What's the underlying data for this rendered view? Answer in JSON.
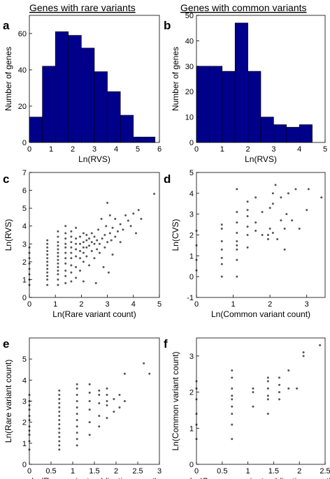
{
  "headers": {
    "rare": "Genes with rare variants",
    "common": "Genes with common variants"
  },
  "chart_data": [
    {
      "panel": "a",
      "type": "bar",
      "xlabel": "Ln(RVS)",
      "ylabel": "Number of genes",
      "xlim": [
        0,
        6
      ],
      "ylim": [
        0,
        70
      ],
      "xticks": [
        0,
        1,
        2,
        3,
        4,
        5,
        6
      ],
      "yticks": [
        0,
        20,
        40,
        60
      ],
      "bin_edges": [
        0,
        0.6,
        1.2,
        1.8,
        2.4,
        3.0,
        3.6,
        4.2,
        4.8,
        5.8
      ],
      "values": [
        14,
        42,
        61,
        59,
        52,
        39,
        28,
        15,
        3
      ],
      "color": "#00008b"
    },
    {
      "panel": "b",
      "type": "bar",
      "xlabel": "Ln(RVS)",
      "ylabel": "Number of genes",
      "xlim": [
        0,
        5
      ],
      "ylim": [
        0,
        50
      ],
      "xticks": [
        0,
        1,
        2,
        3,
        4,
        5
      ],
      "yticks": [
        0,
        10,
        20,
        30,
        40,
        50
      ],
      "bin_edges": [
        0,
        0.5,
        1.0,
        1.5,
        2.0,
        2.5,
        3.0,
        3.5,
        4.0,
        4.5
      ],
      "values": [
        30,
        30,
        28,
        47,
        28,
        10,
        7,
        6,
        7
      ],
      "color": "#00008b"
    },
    {
      "panel": "c",
      "type": "scatter",
      "xlabel": "Ln(Rare variant count)",
      "ylabel": "Ln(RVS)",
      "xlim": [
        0,
        5
      ],
      "ylim": [
        0,
        7
      ],
      "xticks": [
        0,
        1,
        2,
        3,
        4,
        5
      ],
      "yticks": [
        0,
        1,
        2,
        3,
        4,
        5,
        6,
        7
      ],
      "color": "#555555",
      "points": [
        [
          0,
          0.7
        ],
        [
          0,
          1.0
        ],
        [
          0,
          1.3
        ],
        [
          0,
          1.6
        ],
        [
          0,
          1.9
        ],
        [
          0,
          2.2
        ],
        [
          0,
          2.5
        ],
        [
          0,
          2.8
        ],
        [
          0.69,
          0.7
        ],
        [
          0.69,
          1.0
        ],
        [
          0.69,
          1.2
        ],
        [
          0.69,
          1.4
        ],
        [
          0.69,
          1.6
        ],
        [
          0.69,
          1.8
        ],
        [
          0.69,
          2.0
        ],
        [
          0.69,
          2.2
        ],
        [
          0.69,
          2.4
        ],
        [
          0.69,
          2.6
        ],
        [
          0.69,
          2.8
        ],
        [
          0.69,
          3.0
        ],
        [
          0.69,
          3.2
        ],
        [
          1.1,
          0.7
        ],
        [
          1.1,
          1.0
        ],
        [
          1.1,
          1.3
        ],
        [
          1.1,
          1.5
        ],
        [
          1.1,
          1.7
        ],
        [
          1.1,
          1.9
        ],
        [
          1.1,
          2.1
        ],
        [
          1.1,
          2.3
        ],
        [
          1.1,
          2.5
        ],
        [
          1.1,
          2.7
        ],
        [
          1.1,
          2.9
        ],
        [
          1.1,
          3.1
        ],
        [
          1.1,
          3.4
        ],
        [
          1.1,
          3.7
        ],
        [
          1.39,
          0.8
        ],
        [
          1.39,
          1.2
        ],
        [
          1.39,
          1.5
        ],
        [
          1.39,
          1.9
        ],
        [
          1.39,
          2.2
        ],
        [
          1.39,
          2.5
        ],
        [
          1.39,
          2.8
        ],
        [
          1.39,
          3.0
        ],
        [
          1.39,
          3.3
        ],
        [
          1.39,
          3.6
        ],
        [
          1.39,
          4.0
        ],
        [
          1.61,
          0.9
        ],
        [
          1.61,
          1.4
        ],
        [
          1.61,
          1.8
        ],
        [
          1.61,
          2.2
        ],
        [
          1.61,
          2.5
        ],
        [
          1.61,
          2.8
        ],
        [
          1.61,
          3.1
        ],
        [
          1.61,
          3.4
        ],
        [
          1.61,
          3.7
        ],
        [
          1.79,
          1.1
        ],
        [
          1.79,
          1.7
        ],
        [
          1.79,
          2.3
        ],
        [
          1.79,
          2.7
        ],
        [
          1.79,
          3.0
        ],
        [
          1.79,
          3.3
        ],
        [
          1.79,
          3.9
        ],
        [
          1.95,
          1.5
        ],
        [
          1.95,
          2.2
        ],
        [
          1.95,
          2.6
        ],
        [
          1.95,
          3.0
        ],
        [
          1.95,
          3.4
        ],
        [
          2.08,
          0.9
        ],
        [
          2.08,
          2.0
        ],
        [
          2.08,
          2.5
        ],
        [
          2.08,
          2.8
        ],
        [
          2.08,
          3.1
        ],
        [
          2.08,
          3.6
        ],
        [
          2.2,
          2.3
        ],
        [
          2.2,
          2.8
        ],
        [
          2.2,
          3.2
        ],
        [
          2.2,
          3.5
        ],
        [
          2.3,
          1.8
        ],
        [
          2.3,
          2.9
        ],
        [
          2.3,
          3.3
        ],
        [
          2.4,
          2.6
        ],
        [
          2.4,
          3.1
        ],
        [
          2.4,
          3.6
        ],
        [
          2.5,
          2.2
        ],
        [
          2.5,
          3.0
        ],
        [
          2.5,
          3.4
        ],
        [
          2.56,
          0.8
        ],
        [
          2.6,
          2.7
        ],
        [
          2.6,
          3.2
        ],
        [
          2.65,
          3.8
        ],
        [
          2.7,
          2.5
        ],
        [
          2.7,
          3.0
        ],
        [
          2.77,
          4.4
        ],
        [
          2.8,
          3.3
        ],
        [
          2.85,
          1.7
        ],
        [
          2.9,
          2.8
        ],
        [
          2.9,
          3.5
        ],
        [
          2.95,
          4.0
        ],
        [
          3.0,
          3.1
        ],
        [
          3.0,
          5.3
        ],
        [
          3.05,
          1.4
        ],
        [
          3.1,
          3.6
        ],
        [
          3.1,
          4.6
        ],
        [
          3.15,
          3.2
        ],
        [
          3.2,
          3.9
        ],
        [
          3.2,
          2.4
        ],
        [
          3.3,
          3.4
        ],
        [
          3.3,
          4.4
        ],
        [
          3.4,
          3.7
        ],
        [
          3.5,
          3.1
        ],
        [
          3.5,
          4.1
        ],
        [
          3.6,
          3.8
        ],
        [
          3.7,
          4.6
        ],
        [
          3.8,
          4.3
        ],
        [
          3.9,
          4.0
        ],
        [
          4.0,
          4.7
        ],
        [
          4.1,
          3.6
        ],
        [
          4.2,
          4.9
        ],
        [
          4.3,
          4.4
        ],
        [
          4.8,
          5.8
        ]
      ]
    },
    {
      "panel": "d",
      "type": "scatter",
      "xlabel": "Ln(Common variant count)",
      "ylabel": "Ln(CVS)",
      "xlim": [
        0,
        3.5
      ],
      "ylim": [
        -1,
        5
      ],
      "xticks": [
        0,
        1,
        2,
        3
      ],
      "yticks": [
        -1,
        0,
        1,
        2,
        3,
        4,
        5
      ],
      "color": "#555555",
      "points": [
        [
          0,
          0.3
        ],
        [
          0,
          0.8
        ],
        [
          0,
          1.5
        ],
        [
          0,
          2.2
        ],
        [
          0.69,
          0.0
        ],
        [
          0.69,
          0.6
        ],
        [
          0.69,
          0.9
        ],
        [
          0.69,
          1.3
        ],
        [
          0.69,
          1.7
        ],
        [
          0.69,
          2.3
        ],
        [
          0.69,
          2.5
        ],
        [
          1.1,
          0.0
        ],
        [
          1.1,
          0.8
        ],
        [
          1.1,
          1.3
        ],
        [
          1.1,
          1.5
        ],
        [
          1.1,
          1.7
        ],
        [
          1.1,
          2.1
        ],
        [
          1.1,
          2.6
        ],
        [
          1.1,
          3.1
        ],
        [
          1.1,
          4.2
        ],
        [
          1.39,
          1.4
        ],
        [
          1.39,
          2.0
        ],
        [
          1.39,
          2.4
        ],
        [
          1.39,
          2.9
        ],
        [
          1.39,
          3.2
        ],
        [
          1.39,
          3.6
        ],
        [
          1.61,
          2.2
        ],
        [
          1.61,
          2.6
        ],
        [
          1.61,
          3.8
        ],
        [
          1.79,
          2.0
        ],
        [
          1.79,
          3.1
        ],
        [
          1.95,
          1.8
        ],
        [
          1.95,
          2.0
        ],
        [
          2.0,
          2.3
        ],
        [
          2.0,
          3.3
        ],
        [
          2.08,
          2.1
        ],
        [
          2.08,
          3.5
        ],
        [
          2.08,
          4.0
        ],
        [
          2.15,
          4.4
        ],
        [
          2.2,
          1.8
        ],
        [
          2.3,
          2.7
        ],
        [
          2.3,
          3.8
        ],
        [
          2.4,
          1.3
        ],
        [
          2.4,
          2.3
        ],
        [
          2.45,
          3.0
        ],
        [
          2.5,
          4.0
        ],
        [
          2.6,
          2.7
        ],
        [
          2.7,
          4.2
        ],
        [
          2.8,
          2.3
        ],
        [
          3.0,
          3.2
        ],
        [
          3.05,
          4.2
        ],
        [
          3.4,
          3.8
        ]
      ]
    },
    {
      "panel": "e",
      "type": "scatter",
      "xlabel": "Ln(Rare variant publication count)",
      "ylabel": "Ln(Rare variant count)",
      "xlim": [
        0,
        3
      ],
      "ylim": [
        0,
        6
      ],
      "xticks": [
        0,
        0.5,
        1,
        1.5,
        2,
        2.5,
        3
      ],
      "yticks": [
        0,
        1,
        2,
        3,
        4,
        5
      ],
      "color": "#555555",
      "points": [
        [
          0,
          0.7
        ],
        [
          0,
          1.1
        ],
        [
          0,
          1.4
        ],
        [
          0,
          1.6
        ],
        [
          0,
          1.8
        ],
        [
          0,
          2.1
        ],
        [
          0,
          2.3
        ],
        [
          0,
          2.6
        ],
        [
          0,
          2.8
        ],
        [
          0,
          3.0
        ],
        [
          0,
          3.3
        ],
        [
          0.69,
          0.7
        ],
        [
          0.69,
          0.9
        ],
        [
          0.69,
          1.1
        ],
        [
          0.69,
          1.3
        ],
        [
          0.69,
          1.5
        ],
        [
          0.69,
          1.7
        ],
        [
          0.69,
          1.9
        ],
        [
          0.69,
          2.1
        ],
        [
          0.69,
          2.3
        ],
        [
          0.69,
          2.5
        ],
        [
          0.69,
          2.7
        ],
        [
          0.69,
          2.9
        ],
        [
          0.69,
          3.1
        ],
        [
          0.69,
          3.3
        ],
        [
          0.69,
          3.5
        ],
        [
          1.1,
          0.9
        ],
        [
          1.1,
          1.2
        ],
        [
          1.1,
          1.5
        ],
        [
          1.1,
          1.8
        ],
        [
          1.1,
          2.1
        ],
        [
          1.1,
          2.4
        ],
        [
          1.1,
          2.7
        ],
        [
          1.1,
          3.0
        ],
        [
          1.1,
          3.3
        ],
        [
          1.1,
          3.6
        ],
        [
          1.1,
          3.8
        ],
        [
          1.39,
          1.4
        ],
        [
          1.39,
          2.0
        ],
        [
          1.39,
          2.6
        ],
        [
          1.39,
          3.0
        ],
        [
          1.39,
          3.4
        ],
        [
          1.39,
          3.8
        ],
        [
          1.61,
          1.8
        ],
        [
          1.61,
          2.3
        ],
        [
          1.61,
          2.9
        ],
        [
          1.61,
          3.3
        ],
        [
          1.61,
          3.5
        ],
        [
          1.79,
          2.2
        ],
        [
          1.79,
          2.8
        ],
        [
          1.79,
          3.0
        ],
        [
          1.79,
          3.3
        ],
        [
          1.79,
          3.6
        ],
        [
          1.95,
          2.5
        ],
        [
          1.95,
          3.1
        ],
        [
          2.08,
          2.7
        ],
        [
          2.08,
          3.3
        ],
        [
          2.2,
          3.0
        ],
        [
          2.2,
          4.3
        ],
        [
          2.64,
          4.8
        ],
        [
          2.77,
          4.3
        ]
      ]
    },
    {
      "panel": "f",
      "type": "scatter",
      "xlabel": "Ln(Common variant publication count)",
      "ylabel": "Ln(Common variant count)",
      "xlim": [
        0,
        2.5
      ],
      "ylim": [
        0,
        3.5
      ],
      "xticks": [
        0,
        0.5,
        1,
        1.5,
        2,
        2.5
      ],
      "yticks": [
        0,
        1,
        2,
        3
      ],
      "color": "#555555",
      "points": [
        [
          0,
          0.7
        ],
        [
          0,
          1.1
        ],
        [
          0,
          1.4
        ],
        [
          0,
          1.8
        ],
        [
          0,
          2.1
        ],
        [
          0,
          2.3
        ],
        [
          0.69,
          0.7
        ],
        [
          0.69,
          1.1
        ],
        [
          0.69,
          1.4
        ],
        [
          0.69,
          1.6
        ],
        [
          0.69,
          1.8
        ],
        [
          0.69,
          1.9
        ],
        [
          0.69,
          2.1
        ],
        [
          0.69,
          2.4
        ],
        [
          0.69,
          2.6
        ],
        [
          1.1,
          1.6
        ],
        [
          1.1,
          2.0
        ],
        [
          1.1,
          2.1
        ],
        [
          1.39,
          1.4
        ],
        [
          1.39,
          1.8
        ],
        [
          1.39,
          1.9
        ],
        [
          1.39,
          2.1
        ],
        [
          1.39,
          2.3
        ],
        [
          1.39,
          2.4
        ],
        [
          1.61,
          1.8
        ],
        [
          1.61,
          2.0
        ],
        [
          1.61,
          2.2
        ],
        [
          1.61,
          2.4
        ],
        [
          1.79,
          2.1
        ],
        [
          1.79,
          2.6
        ],
        [
          1.95,
          2.1
        ],
        [
          2.08,
          3.0
        ],
        [
          2.08,
          3.1
        ],
        [
          2.4,
          3.3
        ]
      ]
    }
  ]
}
